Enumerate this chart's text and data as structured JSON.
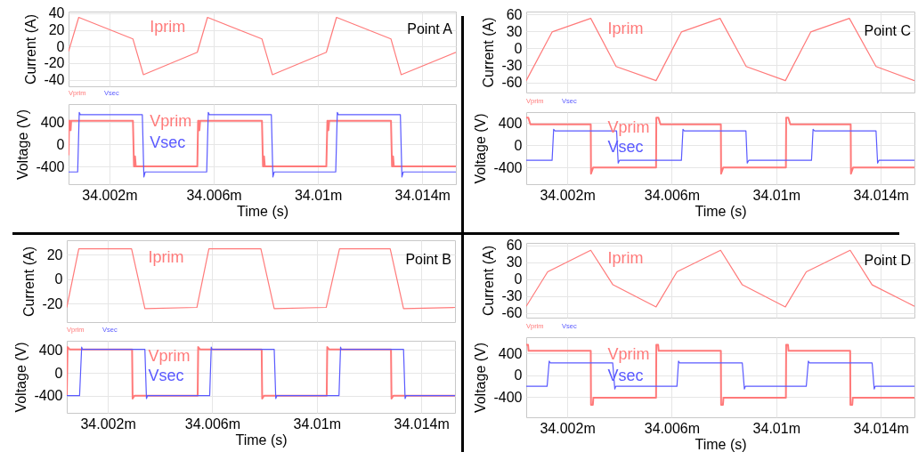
{
  "chart_data": [
    {
      "type": "line",
      "ylabel": "Current (A)",
      "annotations": [
        "Point A"
      ],
      "xlim": [
        34.00043,
        34.01529
      ],
      "xticks": [
        {
          "value": 34.002,
          "label": null
        },
        {
          "value": 34.006,
          "label": null
        },
        {
          "value": 34.01,
          "label": null
        },
        {
          "value": 34.014,
          "label": null
        }
      ],
      "ylim": [
        -48,
        42
      ],
      "yticks": [
        -40,
        -20,
        0,
        20,
        40
      ],
      "grid": true,
      "tick_labels": "y",
      "series": [
        {
          "name": "Iprim",
          "color": "#ff7a7a",
          "x": [
            34.00043,
            34.00082,
            34.0029,
            34.0033,
            34.00537,
            34.00576,
            34.00785,
            34.00825,
            34.01032,
            34.01071,
            34.0128,
            34.01319,
            34.01529
          ],
          "values": [
            -6,
            35,
            9,
            -34,
            -7,
            35,
            9,
            -34,
            -7,
            35,
            9,
            -34,
            -7
          ]
        }
      ]
    },
    {
      "type": "line",
      "xlabel": "Time (s)",
      "ylabel": "Voltage (V)",
      "xlim": [
        34.00043,
        34.01529
      ],
      "xticks": [
        {
          "value": 34.002,
          "label": "34.002m"
        },
        {
          "value": 34.006,
          "label": "34.006m"
        },
        {
          "value": 34.01,
          "label": "34.01m"
        },
        {
          "value": 34.014,
          "label": "34.014m"
        }
      ],
      "ylim": [
        -720,
        720
      ],
      "yticks": [
        -400,
        0,
        400
      ],
      "grid": true,
      "legend": "top left",
      "series": [
        {
          "name": "Vprim",
          "color": "#ff7a7a",
          "x": [
            34.00043,
            34.00045,
            34.0005,
            34.00051,
            34.00053,
            34.0029,
            34.00294,
            34.00297,
            34.00298,
            34.00301,
            34.00537,
            34.0054,
            34.00544,
            34.00545,
            34.00548,
            34.00785,
            34.00789,
            34.00792,
            34.00793,
            34.00796,
            34.01032,
            34.01036,
            34.01039,
            34.0104,
            34.01043,
            34.0128,
            34.01284,
            34.01287,
            34.01288,
            34.01291,
            34.01529
          ],
          "values": [
            -200,
            420,
            420,
            250,
            420,
            420,
            -400,
            -400,
            -220,
            -400,
            -400,
            420,
            420,
            250,
            420,
            420,
            -400,
            -400,
            -220,
            -400,
            -400,
            420,
            420,
            250,
            420,
            420,
            -400,
            -400,
            -220,
            -400,
            -400
          ]
        },
        {
          "name": "Vsec",
          "color": "#5a5aff",
          "x": [
            34.00043,
            34.00078,
            34.00084,
            34.00088,
            34.00326,
            34.00332,
            34.00337,
            34.00573,
            34.00579,
            34.00583,
            34.00821,
            34.00827,
            34.00832,
            34.01068,
            34.01074,
            34.01078,
            34.01316,
            34.01322,
            34.01327,
            34.01529
          ],
          "values": [
            -500,
            -500,
            570,
            530,
            530,
            -590,
            -500,
            -500,
            570,
            530,
            530,
            -590,
            -500,
            -500,
            570,
            530,
            530,
            -590,
            -500,
            -500
          ]
        }
      ]
    },
    {
      "type": "line",
      "ylabel": "Current (A)",
      "annotations": [
        "Point C"
      ],
      "xlim": [
        34.00043,
        34.01529
      ],
      "xticks": [
        {
          "value": 34.002,
          "label": null
        },
        {
          "value": 34.006,
          "label": null
        },
        {
          "value": 34.01,
          "label": null
        },
        {
          "value": 34.014,
          "label": null
        }
      ],
      "ylim": [
        -78,
        65
      ],
      "yticks": [
        -60,
        -30,
        0,
        30,
        60
      ],
      "grid": true,
      "tick_labels": "y",
      "series": [
        {
          "name": "Iprim",
          "color": "#ff7a7a",
          "x": [
            34.00043,
            34.00142,
            34.0029,
            34.00387,
            34.0054,
            34.00637,
            34.00785,
            34.00885,
            34.01035,
            34.01132,
            34.0128,
            34.01382,
            34.01529
          ],
          "values": [
            -57,
            29,
            53,
            -32,
            -57,
            29,
            53,
            -32,
            -57,
            29,
            53,
            -32,
            -57
          ]
        }
      ]
    },
    {
      "type": "line",
      "xlabel": "Time (s)",
      "ylabel": "Voltage (V)",
      "xlim": [
        34.00043,
        34.01529
      ],
      "xticks": [
        {
          "value": 34.002,
          "label": "34.002m"
        },
        {
          "value": 34.006,
          "label": "34.006m"
        },
        {
          "value": 34.01,
          "label": "34.01m"
        },
        {
          "value": 34.014,
          "label": "34.014m"
        }
      ],
      "ylim": [
        -700,
        600
      ],
      "yticks": [
        -400,
        0,
        400
      ],
      "grid": true,
      "legend": "top left",
      "series": [
        {
          "name": "Vprim",
          "color": "#ff7a7a",
          "x": [
            34.00043,
            34.00051,
            34.00059,
            34.0029,
            34.00291,
            34.00299,
            34.0054,
            34.00541,
            34.00549,
            34.00557,
            34.00788,
            34.00789,
            34.00797,
            34.01037,
            34.01038,
            34.01046,
            34.01054,
            34.01285,
            34.01286,
            34.01294,
            34.01529
          ],
          "values": [
            500,
            500,
            380,
            380,
            -510,
            -400,
            -400,
            500,
            500,
            380,
            380,
            -510,
            -400,
            -400,
            500,
            500,
            380,
            380,
            -510,
            -400,
            -400
          ]
        },
        {
          "name": "Vsec",
          "color": "#5a5aff",
          "x": [
            34.00043,
            34.00142,
            34.00148,
            34.00153,
            34.00389,
            34.00395,
            34.004,
            34.00637,
            34.00643,
            34.00648,
            34.00884,
            34.00889,
            34.00895,
            34.01135,
            34.01141,
            34.01147,
            34.01382,
            34.01388,
            34.01393,
            34.01529
          ],
          "values": [
            -270,
            -270,
            290,
            260,
            260,
            -320,
            -270,
            -270,
            290,
            260,
            260,
            -320,
            -270,
            -270,
            290,
            260,
            260,
            -320,
            -270,
            -270
          ]
        }
      ]
    },
    {
      "type": "line",
      "ylabel": "Current (A)",
      "annotations": [
        "Point B"
      ],
      "xlim": [
        34.00043,
        34.01529
      ],
      "xticks": [
        {
          "value": 34.002,
          "label": null
        },
        {
          "value": 34.006,
          "label": null
        },
        {
          "value": 34.01,
          "label": null
        },
        {
          "value": 34.014,
          "label": null
        }
      ],
      "ylim": [
        -35,
        32
      ],
      "yticks": [
        -20,
        0,
        20
      ],
      "grid": true,
      "tick_labels": "y",
      "series": [
        {
          "name": "Iprim",
          "color": "#ff7a7a",
          "x": [
            34.00043,
            34.00089,
            34.00291,
            34.00342,
            34.00541,
            34.00587,
            34.00786,
            34.00837,
            34.01036,
            34.01087,
            34.01281,
            34.01332,
            34.01529
          ],
          "values": [
            -23,
            25,
            25,
            -24,
            -23,
            25,
            25,
            -24,
            -23,
            25,
            25,
            -24,
            -23
          ]
        }
      ]
    },
    {
      "type": "line",
      "xlabel": "Time (s)",
      "ylabel": "Voltage (V)",
      "xlim": [
        34.00043,
        34.01529
      ],
      "xticks": [
        {
          "value": 34.002,
          "label": "34.002m"
        },
        {
          "value": 34.006,
          "label": "34.006m"
        },
        {
          "value": 34.01,
          "label": "34.01m"
        },
        {
          "value": 34.014,
          "label": "34.014m"
        }
      ],
      "ylim": [
        -700,
        560
      ],
      "yticks": [
        -400,
        0,
        400
      ],
      "grid": true,
      "legend": "top left",
      "series": [
        {
          "name": "Vprim",
          "color": "#ff7a7a",
          "x": [
            34.00043,
            34.00046,
            34.00054,
            34.00293,
            34.00295,
            34.00302,
            34.00544,
            34.00546,
            34.00553,
            34.00789,
            34.00791,
            34.00798,
            34.01038,
            34.0104,
            34.01047,
            34.01284,
            34.01286,
            34.01293,
            34.01529
          ],
          "values": [
            -400,
            450,
            410,
            410,
            -450,
            -400,
            -400,
            450,
            410,
            410,
            -450,
            -400,
            -400,
            450,
            410,
            410,
            -450,
            -400,
            -400
          ]
        },
        {
          "name": "Vsec",
          "color": "#5a5aff",
          "x": [
            34.00043,
            34.00092,
            34.001,
            34.00103,
            34.00342,
            34.00348,
            34.00352,
            34.0059,
            34.00596,
            34.00599,
            34.00837,
            34.00843,
            34.00847,
            34.01085,
            34.01091,
            34.01094,
            34.01332,
            34.01338,
            34.01342,
            34.01529
          ],
          "values": [
            -400,
            -400,
            450,
            410,
            410,
            -450,
            -400,
            -400,
            450,
            410,
            410,
            -450,
            -400,
            -400,
            450,
            410,
            410,
            -450,
            -400,
            -400
          ]
        }
      ]
    },
    {
      "type": "line",
      "ylabel": "Current (A)",
      "annotations": [
        "Point D"
      ],
      "xlim": [
        34.00043,
        34.01529
      ],
      "xticks": [
        {
          "value": 34.002,
          "label": null
        },
        {
          "value": 34.006,
          "label": null
        },
        {
          "value": 34.01,
          "label": null
        },
        {
          "value": 34.014,
          "label": null
        }
      ],
      "ylim": [
        -68,
        64
      ],
      "yticks": [
        -60,
        -30,
        0,
        30,
        60
      ],
      "grid": true,
      "tick_labels": "y",
      "series": [
        {
          "name": "Iprim",
          "color": "#ff7a7a",
          "x": [
            34.00043,
            34.00125,
            34.0029,
            34.00375,
            34.0054,
            34.0062,
            34.00787,
            34.0087,
            34.01035,
            34.01115,
            34.01283,
            34.01367,
            34.01529
          ],
          "values": [
            -48,
            13,
            51,
            -10,
            -49,
            13,
            51,
            -10,
            -49,
            13,
            51,
            -10,
            -48
          ]
        }
      ]
    },
    {
      "type": "line",
      "xlabel": "Time (s)",
      "ylabel": "Voltage (V)",
      "xlim": [
        34.00043,
        34.01529
      ],
      "xticks": [
        {
          "value": 34.002,
          "label": "34.002m"
        },
        {
          "value": 34.006,
          "label": "34.006m"
        },
        {
          "value": 34.01,
          "label": "34.01m"
        },
        {
          "value": 34.014,
          "label": "34.014m"
        }
      ],
      "ylim": [
        -770,
        700
      ],
      "yticks": [
        -400,
        0,
        400
      ],
      "grid": true,
      "legend": "top left",
      "series": [
        {
          "name": "Vprim",
          "color": "#ff7a7a",
          "x": [
            34.00043,
            34.0005,
            34.00052,
            34.0029,
            34.00291,
            34.00298,
            34.003,
            34.0054,
            34.00541,
            34.00548,
            34.0055,
            34.00788,
            34.00789,
            34.00796,
            34.00798,
            34.01037,
            34.01038,
            34.01045,
            34.01047,
            34.01283,
            34.01284,
            34.01291,
            34.01293,
            34.01529
          ],
          "values": [
            560,
            560,
            450,
            450,
            -540,
            -540,
            -410,
            -410,
            560,
            560,
            450,
            450,
            -540,
            -540,
            -410,
            -410,
            560,
            560,
            450,
            450,
            -540,
            -540,
            -410,
            -410
          ]
        },
        {
          "name": "Vsec",
          "color": "#5a5aff",
          "x": [
            34.00043,
            34.00123,
            34.00131,
            34.00135,
            34.00374,
            34.00382,
            34.00386,
            34.0062,
            34.00626,
            34.0063,
            34.0087,
            34.00878,
            34.00882,
            34.01115,
            34.01123,
            34.01127,
            34.01367,
            34.01375,
            34.01379,
            34.01529
          ],
          "values": [
            -200,
            -200,
            260,
            230,
            230,
            -250,
            -200,
            -200,
            260,
            230,
            230,
            -250,
            -200,
            -200,
            260,
            230,
            230,
            -250,
            -200,
            -200
          ]
        }
      ]
    }
  ]
}
